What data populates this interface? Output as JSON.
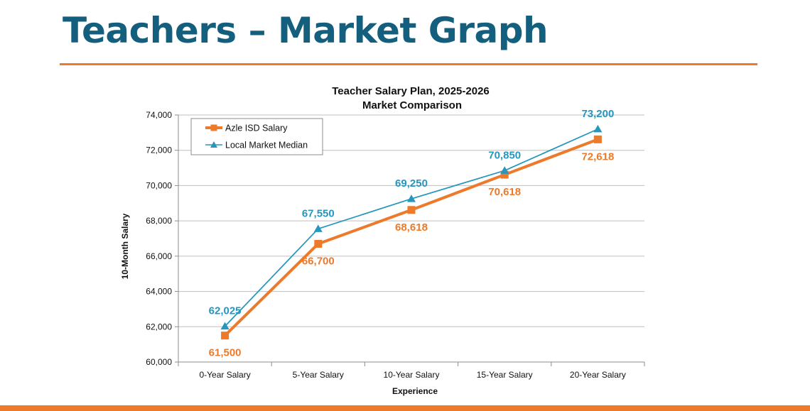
{
  "slide": {
    "title": "Teachers – Market Graph"
  },
  "colors": {
    "title": "#145F7D",
    "accent": "#ED7A2A",
    "azle": "#ED7A2A",
    "market": "#2596BE",
    "grid": "#BFBFBF"
  },
  "chart_data": {
    "type": "line",
    "title": "Teacher Salary Plan, 2025-2026",
    "subtitle": "Market Comparison",
    "xlabel": "Experience",
    "ylabel": "10-Month Salary",
    "categories": [
      "0-Year Salary",
      "5-Year Salary",
      "10-Year Salary",
      "15-Year Salary",
      "20-Year Salary"
    ],
    "ylim": [
      60000,
      74000
    ],
    "yticks": [
      "60,000",
      "62,000",
      "64,000",
      "66,000",
      "68,000",
      "70,000",
      "72,000",
      "74,000"
    ],
    "grid": true,
    "legend_position": "top-left",
    "series": [
      {
        "name": "Azle ISD Salary",
        "values": [
          61500,
          66700,
          68618,
          70618,
          72618
        ],
        "labels": [
          "61,500",
          "66,700",
          "68,618",
          "70,618",
          "72,618"
        ],
        "marker": "square",
        "color": "#ED7A2A"
      },
      {
        "name": "Local Market Median",
        "values": [
          62025,
          67550,
          69250,
          70850,
          73200
        ],
        "labels": [
          "62,025",
          "67,550",
          "69,250",
          "70,850",
          "73,200"
        ],
        "marker": "triangle",
        "color": "#2596BE"
      }
    ]
  }
}
